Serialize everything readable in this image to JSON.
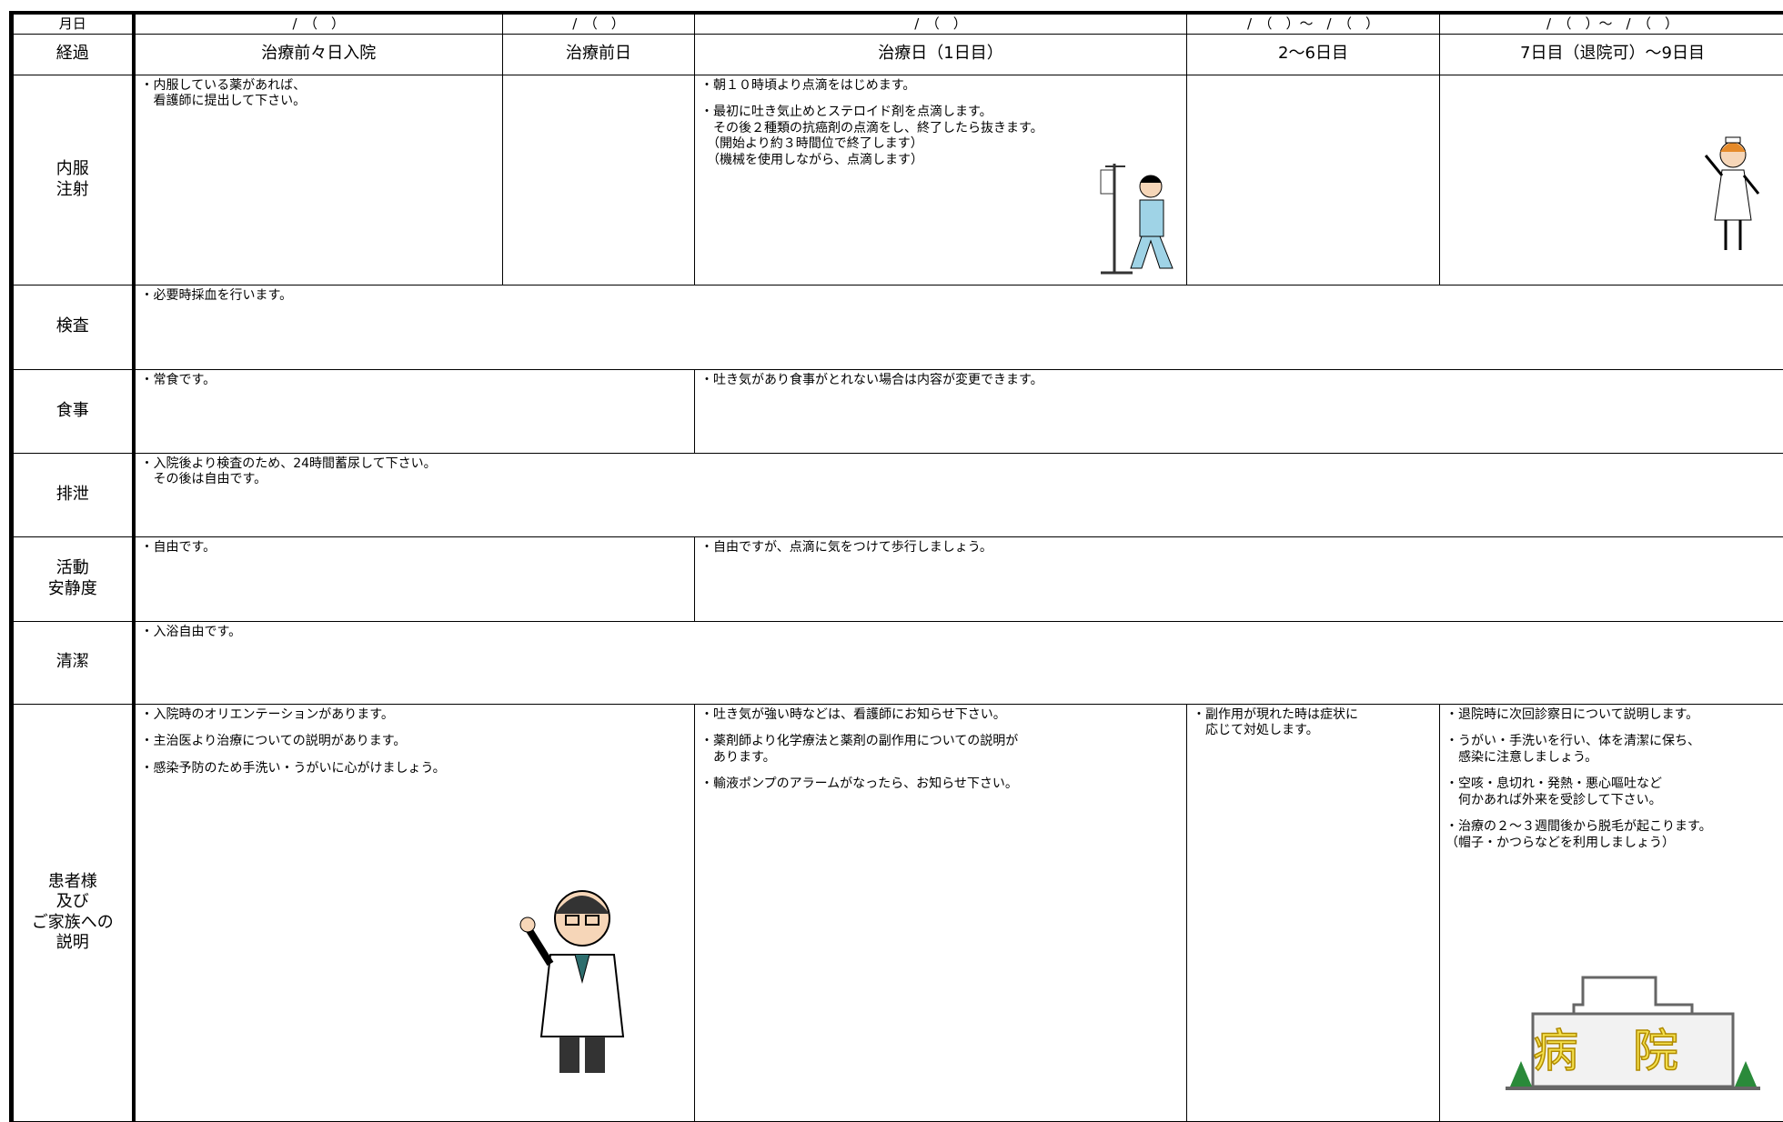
{
  "table": {
    "rows": [
      {
        "label": "月日",
        "cells": [
          "/　（　）",
          "/　（　）",
          "/　（　）",
          "/　（　）～　/　（　）",
          "/　（　）～　/　（　）"
        ]
      },
      {
        "label": "経過",
        "cells": [
          "治療前々日入院",
          "治療前日",
          "治療日（1日目）",
          "2～6日目",
          "7日目（退院可）～9日目"
        ]
      },
      {
        "label": "内服\n注射",
        "cells": [
          [
            "・内服している薬があれば、\n　看護師に提出して下さい。"
          ],
          [],
          [
            "・朝１０時頃より点滴をはじめます。",
            "・最初に吐き気止めとステロイド剤を点滴します。\n　その後２種類の抗癌剤の点滴をし、終了したら抜きます。\n　（開始より約３時間位で終了します）\n　（機械を使用しながら、点滴します）"
          ],
          [],
          []
        ]
      },
      {
        "label": "検査",
        "cells": [
          [
            "・必要時採血を行います。"
          ]
        ]
      },
      {
        "label": "食事",
        "cells": [
          [
            "・常食です。"
          ],
          [
            "・吐き気があり食事がとれない場合は内容が変更できます。"
          ]
        ]
      },
      {
        "label": "排泄",
        "cells": [
          [
            "・入院後より検査のため、24時間蓄尿して下さい。\n　その後は自由です。"
          ]
        ]
      },
      {
        "label": "活動\n安静度",
        "cells": [
          [
            "・自由です。"
          ],
          [
            "・自由ですが、点滴に気をつけて歩行しましょう。"
          ]
        ]
      },
      {
        "label": "清潔",
        "cells": [
          [
            "・入浴自由です。"
          ]
        ]
      },
      {
        "label": "患者様\n及び\nご家族への\n説明",
        "cells": [
          [
            "・入院時のオリエンテーションがあります。",
            "・主治医より治療についての説明があります。",
            "・感染予防のため手洗い・うがいに心がけましょう。"
          ],
          [
            "・吐き気が強い時などは、看護師にお知らせ下さい。",
            "・薬剤師より化学療法と薬剤の副作用についての説明が\n　あります。",
            "・輸液ポンプのアラームがなったら、お知らせ下さい。"
          ],
          [
            "・副作用が現れた時は症状に\n　応じて対処します。"
          ],
          [
            "・退院時に次回診察日について説明します。",
            "・うがい・手洗いを行い、体を清潔に保ち、\n　感染に注意しましょう。",
            "・空咳・息切れ・発熱・悪心嘔吐など\n　何かあれば外来を受診して下さい。",
            "・治療の２～３週間後から脱毛が起こります。\n（帽子・かつらなどを利用しましょう）"
          ]
        ]
      }
    ]
  },
  "hospital_sign": "病院"
}
